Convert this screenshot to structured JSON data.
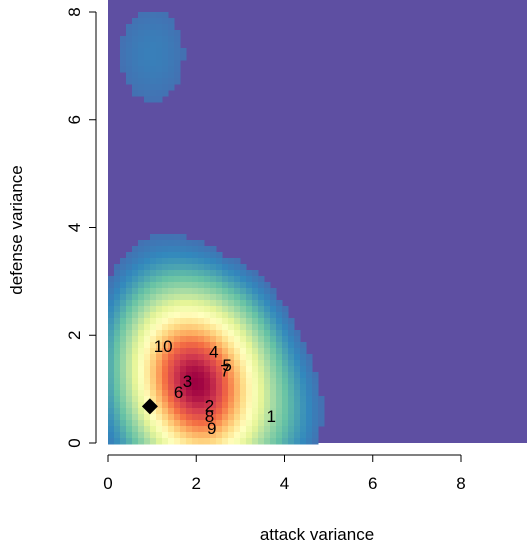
{
  "chart_data": {
    "type": "heatmap",
    "title": "",
    "xlabel": "attack variance",
    "ylabel": "defense variance",
    "xlim": [
      0,
      9.3
    ],
    "ylim": [
      0,
      8.1
    ],
    "x_ticks": [
      "0",
      "2",
      "4",
      "6",
      "8"
    ],
    "x_tick_values": [
      0,
      2,
      4,
      6,
      8
    ],
    "y_ticks": [
      "0",
      "2",
      "4",
      "6",
      "8"
    ],
    "y_tick_values": [
      0,
      2,
      4,
      6,
      8
    ],
    "grid": false,
    "colormap": "spectral (purple low to red high)",
    "colors": {
      "background": "#5E4FA2",
      "low": "#5E4FA2",
      "high": "#9E0142",
      "marker": "#000000"
    },
    "density_peaks": [
      {
        "x": 1.55,
        "y": 1.45,
        "weight": 1.0
      },
      {
        "x": 2.25,
        "y": 0.75,
        "weight": 0.55
      },
      {
        "x": 1.0,
        "y": 7.3,
        "weight": 0.12
      }
    ],
    "points": [
      {
        "label": "1",
        "x": 3.7,
        "y": 0.5
      },
      {
        "label": "2",
        "x": 2.3,
        "y": 0.7
      },
      {
        "label": "3",
        "x": 1.8,
        "y": 1.15
      },
      {
        "label": "4",
        "x": 2.4,
        "y": 1.7
      },
      {
        "label": "5",
        "x": 2.7,
        "y": 1.45
      },
      {
        "label": "6",
        "x": 1.6,
        "y": 0.95
      },
      {
        "label": "7",
        "x": 2.65,
        "y": 1.35
      },
      {
        "label": "8",
        "x": 2.3,
        "y": 0.5
      },
      {
        "label": "9",
        "x": 2.35,
        "y": 0.28
      },
      {
        "label": "10",
        "x": 1.25,
        "y": 1.8
      }
    ],
    "highlight_marker": {
      "shape": "diamond",
      "x": 0.95,
      "y": 0.68
    }
  }
}
